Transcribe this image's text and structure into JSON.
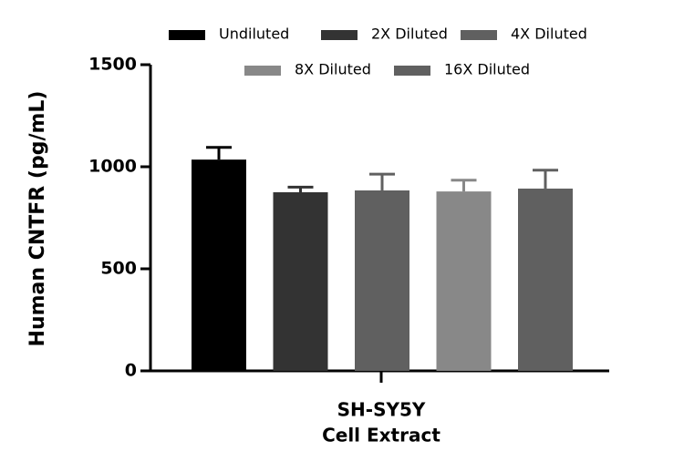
{
  "chart_data": {
    "type": "bar",
    "y_label": "Human CNTFR (pg/mL)",
    "categories": [
      [
        "SH-SY5Y",
        "Cell Extract"
      ]
    ],
    "series": [
      {
        "name": "Undiluted",
        "color": "#000000",
        "values": [
          1035
        ],
        "errors": [
          60
        ]
      },
      {
        "name": "2X Diluted",
        "color": "#333333",
        "values": [
          875
        ],
        "errors": [
          25
        ]
      },
      {
        "name": "4X Diluted",
        "color": "#606060",
        "values": [
          884
        ],
        "errors": [
          80
        ]
      },
      {
        "name": "8X Diluted",
        "color": "#888888",
        "values": [
          879
        ],
        "errors": [
          55
        ]
      },
      {
        "name": "16X Diluted",
        "color": "#606060",
        "values": [
          893
        ],
        "errors": [
          90
        ]
      }
    ],
    "ylim": [
      0,
      1500
    ],
    "yticks": [
      0,
      500,
      1000,
      1500
    ]
  }
}
